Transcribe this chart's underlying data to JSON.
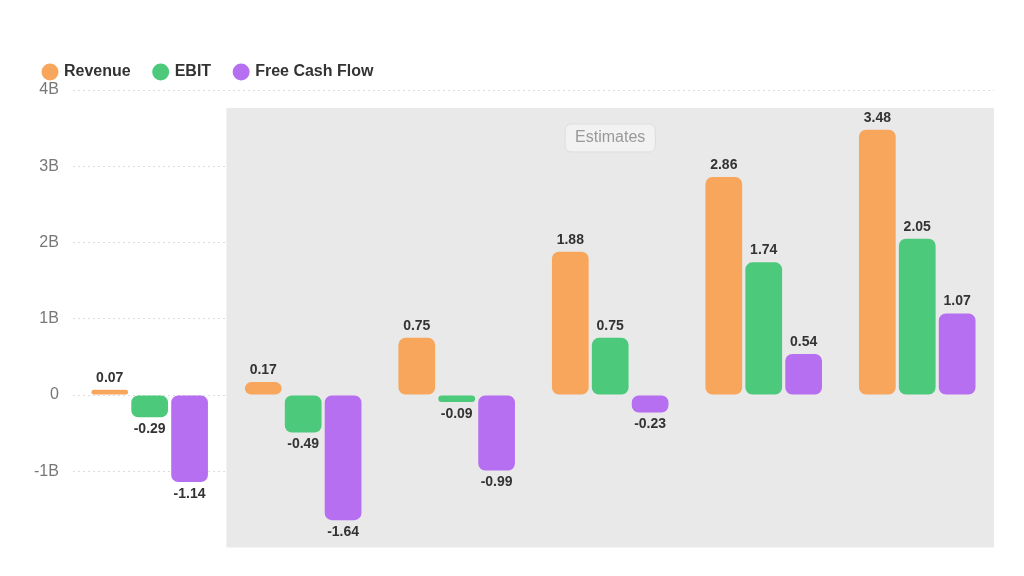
{
  "chart_data": {
    "type": "bar",
    "categories": [
      null,
      null,
      null,
      null,
      null,
      null
    ],
    "series": [
      {
        "name": "Revenue",
        "color": "#f7a65c",
        "values": [
          0.07,
          0.17,
          0.75,
          1.88,
          2.86,
          3.48
        ]
      },
      {
        "name": "EBIT",
        "color": "#4cc97a",
        "values": [
          -0.29,
          -0.49,
          -0.09,
          0.75,
          1.74,
          2.05
        ]
      },
      {
        "name": "Free Cash Flow",
        "color": "#b66ff0",
        "values": [
          -1.14,
          -1.64,
          -0.99,
          -0.23,
          0.54,
          1.07
        ]
      }
    ],
    "ylim": [
      -2,
      4
    ],
    "yticks": [
      {
        "value": -1,
        "label": "-1B"
      },
      {
        "value": 0,
        "label": "0"
      },
      {
        "value": 1,
        "label": "1B"
      },
      {
        "value": 2,
        "label": "2B"
      },
      {
        "value": 3,
        "label": "3B"
      },
      {
        "value": 4,
        "label": "4B"
      }
    ],
    "annotations": [
      "Estimates"
    ],
    "data_labels": true,
    "grid": "y",
    "legend": "top left"
  }
}
